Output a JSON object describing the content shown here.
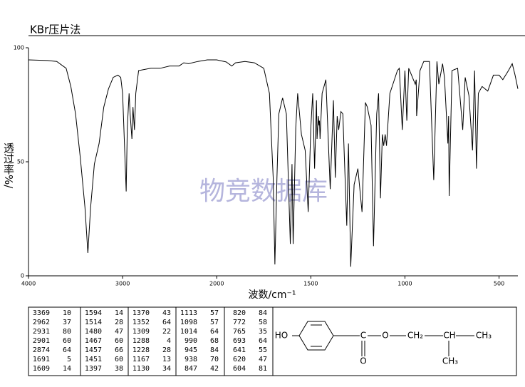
{
  "header": {
    "title": "KBr压片法"
  },
  "chart_data": {
    "type": "line",
    "xlabel": "波数/cm⁻¹",
    "ylabel": "透过率%/",
    "watermark": "物竞数据库",
    "xlim": [
      4000,
      400
    ],
    "x_scale_break": 2000,
    "xticks": [
      4000,
      3000,
      2000,
      1500,
      1000,
      500
    ],
    "ylim": [
      0,
      100
    ],
    "yticks": [
      0,
      50,
      100
    ],
    "color": "#000000",
    "x": [
      4000,
      3800,
      3700,
      3600,
      3550,
      3500,
      3450,
      3400,
      3369,
      3340,
      3300,
      3250,
      3200,
      3150,
      3100,
      3050,
      3020,
      3000,
      2962,
      2950,
      2931,
      2920,
      2901,
      2890,
      2874,
      2860,
      2830,
      2700,
      2600,
      2500,
      2400,
      2350,
      2300,
      2200,
      2100,
      2000,
      1950,
      1920,
      1900,
      1850,
      1800,
      1750,
      1720,
      1700,
      1691,
      1680,
      1670,
      1650,
      1630,
      1609,
      1600,
      1594,
      1580,
      1570,
      1550,
      1530,
      1514,
      1500,
      1490,
      1480,
      1470,
      1467,
      1460,
      1457,
      1454,
      1451,
      1440,
      1420,
      1397,
      1380,
      1370,
      1360,
      1352,
      1340,
      1330,
      1309,
      1300,
      1288,
      1270,
      1250,
      1228,
      1210,
      1200,
      1180,
      1167,
      1150,
      1140,
      1130,
      1120,
      1113,
      1105,
      1098,
      1080,
      1060,
      1040,
      1030,
      1014,
      1000,
      990,
      980,
      960,
      945,
      940,
      938,
      920,
      900,
      870,
      847,
      830,
      820,
      800,
      790,
      772,
      768,
      765,
      750,
      720,
      693,
      680,
      660,
      641,
      635,
      630,
      620,
      610,
      604,
      590,
      560,
      530,
      500,
      480,
      450,
      430,
      415,
      400
    ],
    "values": [
      94.7,
      94.4,
      94,
      91,
      83,
      71,
      52,
      30,
      10,
      30,
      49,
      58,
      74,
      82,
      87,
      88,
      87,
      80,
      37,
      65,
      80,
      71,
      60,
      74,
      64,
      80,
      90,
      91,
      91,
      92,
      92,
      93.4,
      93,
      94,
      94.7,
      94.7,
      93.8,
      92,
      93.4,
      94,
      93.4,
      91,
      80,
      43,
      5,
      43,
      71,
      78,
      71,
      14,
      49,
      14,
      65,
      80,
      62,
      55,
      28,
      65,
      80,
      47,
      77,
      60,
      70,
      66,
      68,
      60,
      80,
      86,
      38,
      77,
      43,
      70,
      64,
      72,
      71,
      22,
      58,
      4,
      40,
      47,
      28,
      76,
      74,
      66,
      13,
      71,
      80,
      34,
      62,
      57,
      62,
      57,
      80,
      85,
      90,
      91,
      64,
      90,
      68,
      91,
      87,
      84,
      86,
      70,
      90,
      94,
      94,
      42,
      94,
      84,
      93,
      87,
      58,
      70,
      35,
      90,
      91,
      64,
      87,
      79,
      55,
      75,
      90,
      47,
      80,
      81,
      83,
      81,
      88,
      88,
      86,
      90,
      93,
      88,
      82
    ]
  },
  "peak_table": [
    [
      3369,
      10,
      1594,
      14,
      1370,
      43,
      1113,
      57,
      820,
      84
    ],
    [
      2962,
      37,
      1514,
      28,
      1352,
      64,
      1098,
      57,
      772,
      58
    ],
    [
      2931,
      80,
      1480,
      47,
      1309,
      22,
      1014,
      64,
      765,
      35
    ],
    [
      2901,
      60,
      1467,
      60,
      1288,
      4,
      990,
      68,
      693,
      64
    ],
    [
      2874,
      64,
      1457,
      66,
      1228,
      28,
      945,
      84,
      641,
      55
    ],
    [
      1691,
      5,
      1451,
      60,
      1167,
      13,
      938,
      70,
      620,
      47
    ],
    [
      1609,
      14,
      1397,
      38,
      1130,
      34,
      847,
      42,
      604,
      81
    ]
  ],
  "structure": {
    "labels": [
      "HO",
      "C",
      "O",
      "O",
      "CH₂",
      "CH",
      "CH₃",
      "CH₃"
    ]
  }
}
